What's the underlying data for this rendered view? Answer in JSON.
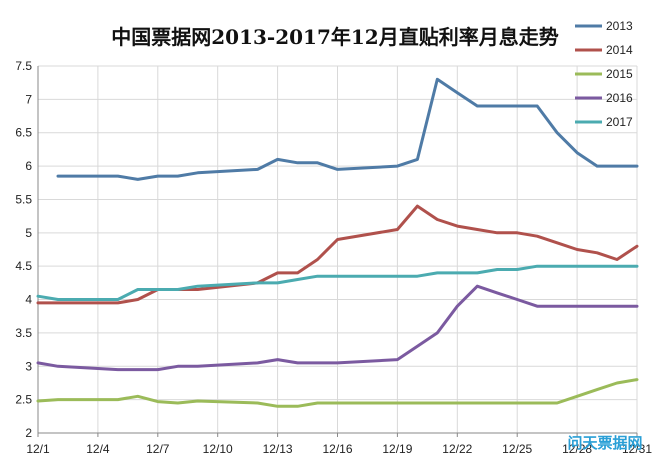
{
  "chart_data": {
    "type": "line",
    "title": "中国票据网2013-2017年12月直贴利率月息走势",
    "xlabel": "",
    "ylabel": "",
    "ylim": [
      2,
      7.5
    ],
    "yticks": [
      "2",
      "2.5",
      "3",
      "3.5",
      "4",
      "4.5",
      "5",
      "5.5",
      "6",
      "6.5",
      "7",
      "7.5"
    ],
    "xlim": [
      1,
      31
    ],
    "xticks": [
      {
        "day": 1,
        "label": "12/1"
      },
      {
        "day": 4,
        "label": "12/4"
      },
      {
        "day": 7,
        "label": "12/7"
      },
      {
        "day": 10,
        "label": "12/10"
      },
      {
        "day": 13,
        "label": "12/13"
      },
      {
        "day": 16,
        "label": "12/16"
      },
      {
        "day": 19,
        "label": "12/19"
      },
      {
        "day": 22,
        "label": "12/22"
      },
      {
        "day": 25,
        "label": "12/25"
      },
      {
        "day": 28,
        "label": "12/28"
      },
      {
        "day": 31,
        "label": "12/31"
      }
    ],
    "grid": true,
    "legend": "right",
    "series": [
      {
        "name": "2013",
        "color": "#4f7ba6",
        "x": [
          2,
          5,
          6,
          7,
          8,
          9,
          12,
          13,
          14,
          15,
          16,
          19,
          20,
          21,
          22,
          23,
          24,
          25,
          26,
          27,
          28,
          29,
          30,
          31
        ],
        "y": [
          5.85,
          5.85,
          5.8,
          5.85,
          5.85,
          5.9,
          5.95,
          6.1,
          6.05,
          6.05,
          5.95,
          6.0,
          6.1,
          7.3,
          7.1,
          6.9,
          6.9,
          6.9,
          6.9,
          6.5,
          6.2,
          6.0,
          6.0,
          6.0
        ]
      },
      {
        "name": "2014",
        "color": "#b0514c",
        "x": [
          1,
          5,
          6,
          7,
          8,
          9,
          12,
          13,
          14,
          15,
          16,
          19,
          20,
          21,
          22,
          23,
          24,
          25,
          26,
          27,
          28,
          29,
          30,
          31
        ],
        "y": [
          3.95,
          3.95,
          4.0,
          4.15,
          4.15,
          4.15,
          4.25,
          4.4,
          4.4,
          4.6,
          4.9,
          5.05,
          5.4,
          5.2,
          5.1,
          5.05,
          5.0,
          5.0,
          4.95,
          4.85,
          4.75,
          4.7,
          4.6,
          4.8
        ]
      },
      {
        "name": "2015",
        "color": "#9bbb59",
        "x": [
          1,
          2,
          5,
          6,
          7,
          8,
          9,
          12,
          13,
          14,
          15,
          16,
          19,
          20,
          21,
          22,
          23,
          24,
          25,
          26,
          27,
          28,
          29,
          30,
          31
        ],
        "y": [
          2.48,
          2.5,
          2.5,
          2.55,
          2.47,
          2.45,
          2.48,
          2.45,
          2.4,
          2.4,
          2.45,
          2.45,
          2.45,
          2.45,
          2.45,
          2.45,
          2.45,
          2.45,
          2.45,
          2.45,
          2.45,
          2.55,
          2.65,
          2.75,
          2.8
        ]
      },
      {
        "name": "2016",
        "color": "#7b5aa0",
        "x": [
          1,
          2,
          5,
          6,
          7,
          8,
          9,
          12,
          13,
          14,
          15,
          16,
          19,
          20,
          21,
          22,
          23,
          24,
          25,
          26,
          27,
          28,
          29,
          30,
          31
        ],
        "y": [
          3.05,
          3.0,
          2.95,
          2.95,
          2.95,
          3.0,
          3.0,
          3.05,
          3.1,
          3.05,
          3.05,
          3.05,
          3.1,
          3.3,
          3.5,
          3.9,
          4.2,
          4.1,
          4.0,
          3.9,
          3.9,
          3.9,
          3.9,
          3.9,
          3.9
        ]
      },
      {
        "name": "2017",
        "color": "#4babb0",
        "x": [
          1,
          2,
          5,
          6,
          7,
          8,
          9,
          12,
          13,
          14,
          15,
          16,
          19,
          20,
          21,
          22,
          23,
          24,
          25,
          26,
          27,
          28,
          29,
          30,
          31
        ],
        "y": [
          4.05,
          4.0,
          4.0,
          4.15,
          4.15,
          4.15,
          4.2,
          4.25,
          4.25,
          4.3,
          4.35,
          4.35,
          4.35,
          4.35,
          4.4,
          4.4,
          4.4,
          4.45,
          4.45,
          4.5,
          4.5,
          4.5,
          4.5,
          4.5,
          4.5
        ]
      }
    ]
  },
  "watermark": {
    "text": "问天票据网"
  }
}
